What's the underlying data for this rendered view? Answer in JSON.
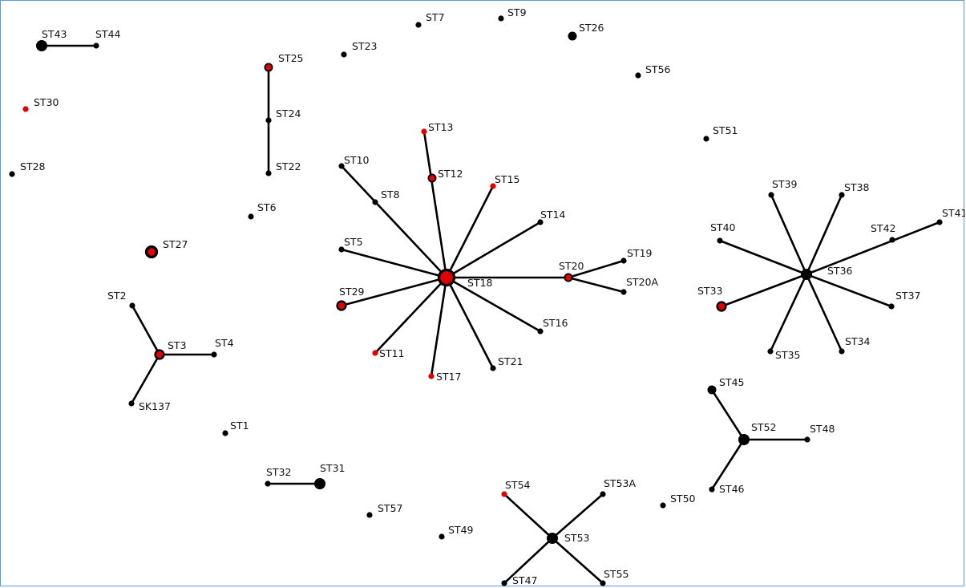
{
  "diagram": {
    "type": "minimum-spanning-tree",
    "colors": {
      "black": "#000000",
      "red": "#e00000",
      "edge": "#000000"
    },
    "nodes": [
      {
        "id": "ST43",
        "label": "ST43",
        "size": "medium",
        "color": "black"
      },
      {
        "id": "ST44",
        "label": "ST44",
        "size": "tiny",
        "color": "black"
      },
      {
        "id": "ST30",
        "label": "ST30",
        "size": "tiny",
        "color": "red"
      },
      {
        "id": "ST28",
        "label": "ST28",
        "size": "tiny",
        "color": "black"
      },
      {
        "id": "ST25",
        "label": "ST25",
        "size": "small-ring",
        "color": "red"
      },
      {
        "id": "ST24",
        "label": "ST24",
        "size": "tiny",
        "color": "black"
      },
      {
        "id": "ST22",
        "label": "ST22",
        "size": "tiny",
        "color": "black"
      },
      {
        "id": "ST23",
        "label": "ST23",
        "size": "tiny",
        "color": "black"
      },
      {
        "id": "ST7",
        "label": "ST7",
        "size": "tiny",
        "color": "black"
      },
      {
        "id": "ST9",
        "label": "ST9",
        "size": "tiny",
        "color": "black"
      },
      {
        "id": "ST26",
        "label": "ST26",
        "size": "small",
        "color": "black"
      },
      {
        "id": "ST56",
        "label": "ST56",
        "size": "tiny",
        "color": "black"
      },
      {
        "id": "ST51",
        "label": "ST51",
        "size": "tiny",
        "color": "black"
      },
      {
        "id": "ST6",
        "label": "ST6",
        "size": "tiny",
        "color": "black"
      },
      {
        "id": "ST27",
        "label": "ST27",
        "size": "large-ring",
        "color": "red"
      },
      {
        "id": "ST2",
        "label": "ST2",
        "size": "tiny",
        "color": "black"
      },
      {
        "id": "ST3",
        "label": "ST3",
        "size": "medium-ring",
        "color": "red"
      },
      {
        "id": "ST4",
        "label": "ST4",
        "size": "tiny",
        "color": "black"
      },
      {
        "id": "SK137",
        "label": "SK137",
        "size": "tiny",
        "color": "black"
      },
      {
        "id": "ST1",
        "label": "ST1",
        "size": "tiny",
        "color": "black"
      },
      {
        "id": "ST13",
        "label": "ST13",
        "size": "tiny",
        "color": "red"
      },
      {
        "id": "ST12",
        "label": "ST12",
        "size": "small-ring",
        "color": "red"
      },
      {
        "id": "ST10",
        "label": "ST10",
        "size": "tiny",
        "color": "black"
      },
      {
        "id": "ST8",
        "label": "ST8",
        "size": "tiny",
        "color": "black"
      },
      {
        "id": "ST15",
        "label": "ST15",
        "size": "tiny",
        "color": "red"
      },
      {
        "id": "ST14",
        "label": "ST14",
        "size": "tiny",
        "color": "black"
      },
      {
        "id": "ST5",
        "label": "ST5",
        "size": "tiny",
        "color": "black"
      },
      {
        "id": "ST18",
        "label": "ST18",
        "size": "hub-ring",
        "color": "red"
      },
      {
        "id": "ST20",
        "label": "ST20",
        "size": "small-ring",
        "color": "red"
      },
      {
        "id": "ST19",
        "label": "ST19",
        "size": "tiny",
        "color": "black"
      },
      {
        "id": "ST20A",
        "label": "ST20A",
        "size": "tiny",
        "color": "black"
      },
      {
        "id": "ST29",
        "label": "ST29",
        "size": "medium-ring",
        "color": "red"
      },
      {
        "id": "ST16",
        "label": "ST16",
        "size": "tiny",
        "color": "black"
      },
      {
        "id": "ST11",
        "label": "ST11",
        "size": "tiny",
        "color": "red"
      },
      {
        "id": "ST21",
        "label": "ST21",
        "size": "tiny",
        "color": "black"
      },
      {
        "id": "ST17",
        "label": "ST17",
        "size": "tiny",
        "color": "red"
      },
      {
        "id": "ST39",
        "label": "ST39",
        "size": "tiny",
        "color": "black"
      },
      {
        "id": "ST38",
        "label": "ST38",
        "size": "tiny",
        "color": "black"
      },
      {
        "id": "ST41",
        "label": "ST41",
        "size": "tiny",
        "color": "black"
      },
      {
        "id": "ST42",
        "label": "ST42",
        "size": "tiny",
        "color": "black"
      },
      {
        "id": "ST40",
        "label": "ST40",
        "size": "tiny",
        "color": "black"
      },
      {
        "id": "ST36",
        "label": "ST36",
        "size": "medium",
        "color": "black"
      },
      {
        "id": "ST33",
        "label": "ST33",
        "size": "medium-ring",
        "color": "red"
      },
      {
        "id": "ST37",
        "label": "ST37",
        "size": "tiny",
        "color": "black"
      },
      {
        "id": "ST35",
        "label": "ST35",
        "size": "tiny",
        "color": "black"
      },
      {
        "id": "ST34",
        "label": "ST34",
        "size": "tiny",
        "color": "black"
      },
      {
        "id": "ST45",
        "label": "ST45",
        "size": "small",
        "color": "black"
      },
      {
        "id": "ST52",
        "label": "ST52",
        "size": "medium",
        "color": "black"
      },
      {
        "id": "ST48",
        "label": "ST48",
        "size": "tiny",
        "color": "black"
      },
      {
        "id": "ST46",
        "label": "ST46",
        "size": "tiny",
        "color": "black"
      },
      {
        "id": "ST32",
        "label": "ST32",
        "size": "tiny",
        "color": "black"
      },
      {
        "id": "ST31",
        "label": "ST31",
        "size": "medium",
        "color": "black"
      },
      {
        "id": "ST57",
        "label": "ST57",
        "size": "tiny",
        "color": "black"
      },
      {
        "id": "ST49",
        "label": "ST49",
        "size": "tiny",
        "color": "black"
      },
      {
        "id": "ST54",
        "label": "ST54",
        "size": "tiny",
        "color": "red"
      },
      {
        "id": "ST53A",
        "label": "ST53A",
        "size": "tiny",
        "color": "black"
      },
      {
        "id": "ST53",
        "label": "ST53",
        "size": "medium",
        "color": "black"
      },
      {
        "id": "ST47",
        "label": "ST47",
        "size": "tiny",
        "color": "black"
      },
      {
        "id": "ST55",
        "label": "ST55",
        "size": "tiny",
        "color": "black"
      },
      {
        "id": "ST50",
        "label": "ST50",
        "size": "tiny",
        "color": "black"
      }
    ],
    "edges": [
      [
        "ST43",
        "ST44"
      ],
      [
        "ST25",
        "ST24"
      ],
      [
        "ST24",
        "ST22"
      ],
      [
        "ST2",
        "ST3"
      ],
      [
        "ST3",
        "ST4"
      ],
      [
        "ST3",
        "SK137"
      ],
      [
        "ST18",
        "ST13"
      ],
      [
        "ST18",
        "ST10"
      ],
      [
        "ST18",
        "ST15"
      ],
      [
        "ST18",
        "ST14"
      ],
      [
        "ST18",
        "ST5"
      ],
      [
        "ST18",
        "ST20"
      ],
      [
        "ST18",
        "ST29"
      ],
      [
        "ST18",
        "ST16"
      ],
      [
        "ST18",
        "ST11"
      ],
      [
        "ST18",
        "ST21"
      ],
      [
        "ST18",
        "ST17"
      ],
      [
        "ST20",
        "ST19"
      ],
      [
        "ST20",
        "ST20A"
      ],
      [
        "ST36",
        "ST39"
      ],
      [
        "ST36",
        "ST38"
      ],
      [
        "ST36",
        "ST41"
      ],
      [
        "ST36",
        "ST40"
      ],
      [
        "ST36",
        "ST33"
      ],
      [
        "ST36",
        "ST37"
      ],
      [
        "ST36",
        "ST35"
      ],
      [
        "ST36",
        "ST34"
      ],
      [
        "ST52",
        "ST45"
      ],
      [
        "ST52",
        "ST48"
      ],
      [
        "ST52",
        "ST46"
      ],
      [
        "ST32",
        "ST31"
      ],
      [
        "ST53",
        "ST54"
      ],
      [
        "ST53",
        "ST53A"
      ],
      [
        "ST53",
        "ST47"
      ],
      [
        "ST53",
        "ST55"
      ]
    ]
  }
}
